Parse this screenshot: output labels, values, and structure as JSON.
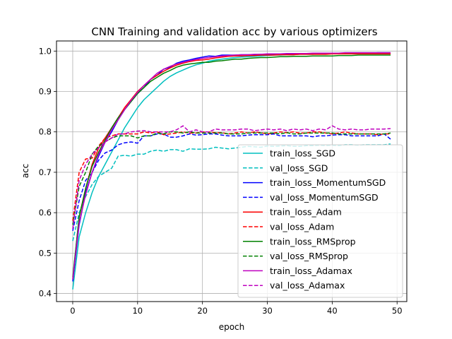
{
  "chart_data": {
    "type": "line",
    "title": "CNN Training and validation acc by various optimizers",
    "xlabel": "epoch",
    "ylabel": "acc",
    "xlim": [
      -2.5,
      51.5
    ],
    "ylim": [
      0.38,
      1.025
    ],
    "x_ticks": [
      "0",
      "10",
      "20",
      "30",
      "40",
      "50"
    ],
    "x_tick_values": [
      0,
      10,
      20,
      30,
      40,
      50
    ],
    "y_ticks": [
      "0.4",
      "0.5",
      "0.6",
      "0.7",
      "0.8",
      "0.9",
      "1.0"
    ],
    "y_tick_values": [
      0.4,
      0.5,
      0.6,
      0.7,
      0.8,
      0.9,
      1.0
    ],
    "grid": true,
    "legend_position": "lower-right",
    "x": [
      0,
      1,
      2,
      3,
      4,
      5,
      6,
      7,
      8,
      9,
      10,
      11,
      12,
      13,
      14,
      15,
      16,
      17,
      18,
      19,
      20,
      21,
      22,
      23,
      24,
      25,
      26,
      27,
      28,
      29,
      30,
      31,
      32,
      33,
      34,
      35,
      36,
      37,
      38,
      39,
      40,
      41,
      42,
      43,
      44,
      45,
      46,
      47,
      48,
      49
    ],
    "series": [
      {
        "name": "train_loss_SGD",
        "color": "#00bfbf",
        "dash": "solid",
        "values": [
          0.41,
          0.54,
          0.6,
          0.65,
          0.69,
          0.72,
          0.75,
          0.78,
          0.81,
          0.835,
          0.86,
          0.88,
          0.895,
          0.91,
          0.925,
          0.937,
          0.946,
          0.953,
          0.96,
          0.966,
          0.97,
          0.975,
          0.978,
          0.98,
          0.982,
          0.984,
          0.985,
          0.986,
          0.987,
          0.988,
          0.989,
          0.99,
          0.99,
          0.991,
          0.991,
          0.992,
          0.992,
          0.992,
          0.993,
          0.993,
          0.993,
          0.993,
          0.994,
          0.994,
          0.994,
          0.994,
          0.994,
          0.994,
          0.995,
          0.995
        ]
      },
      {
        "name": "val_loss_SGD",
        "color": "#00bfbf",
        "dash": "dashed",
        "values": [
          0.53,
          0.6,
          0.64,
          0.67,
          0.69,
          0.7,
          0.71,
          0.74,
          0.742,
          0.74,
          0.745,
          0.745,
          0.752,
          0.755,
          0.752,
          0.756,
          0.756,
          0.752,
          0.758,
          0.757,
          0.757,
          0.758,
          0.762,
          0.76,
          0.758,
          0.76,
          0.762,
          0.764,
          0.763,
          0.762,
          0.765,
          0.764,
          0.765,
          0.766,
          0.764,
          0.764,
          0.766,
          0.766,
          0.767,
          0.766,
          0.767,
          0.766,
          0.768,
          0.768,
          0.767,
          0.768,
          0.768,
          0.768,
          0.768,
          0.77
        ]
      },
      {
        "name": "train_loss_MomentumSGD",
        "color": "#0000ff",
        "dash": "solid",
        "values": [
          0.43,
          0.57,
          0.65,
          0.7,
          0.74,
          0.775,
          0.8,
          0.83,
          0.855,
          0.875,
          0.895,
          0.91,
          0.93,
          0.94,
          0.955,
          0.96,
          0.97,
          0.975,
          0.978,
          0.982,
          0.985,
          0.988,
          0.987,
          0.99,
          0.99,
          0.99,
          0.991,
          0.991,
          0.991,
          0.992,
          0.992,
          0.992,
          0.993,
          0.993,
          0.993,
          0.993,
          0.993,
          0.994,
          0.994,
          0.994,
          0.995,
          0.995,
          0.995,
          0.995,
          0.995,
          0.995,
          0.995,
          0.996,
          0.996,
          0.996
        ]
      },
      {
        "name": "val_loss_MomentumSGD",
        "color": "#0000ff",
        "dash": "dashed",
        "values": [
          0.555,
          0.63,
          0.68,
          0.7,
          0.73,
          0.748,
          0.755,
          0.768,
          0.773,
          0.775,
          0.772,
          0.79,
          0.79,
          0.795,
          0.795,
          0.787,
          0.787,
          0.79,
          0.795,
          0.792,
          0.793,
          0.795,
          0.795,
          0.792,
          0.79,
          0.79,
          0.79,
          0.792,
          0.793,
          0.793,
          0.793,
          0.795,
          0.79,
          0.79,
          0.79,
          0.79,
          0.79,
          0.788,
          0.79,
          0.79,
          0.792,
          0.793,
          0.793,
          0.79,
          0.79,
          0.79,
          0.79,
          0.79,
          0.795,
          0.782
        ]
      },
      {
        "name": "train_loss_Adam",
        "color": "#ff0000",
        "dash": "solid",
        "values": [
          0.435,
          0.59,
          0.66,
          0.72,
          0.76,
          0.785,
          0.81,
          0.835,
          0.86,
          0.88,
          0.9,
          0.915,
          0.93,
          0.94,
          0.95,
          0.958,
          0.965,
          0.97,
          0.974,
          0.977,
          0.978,
          0.98,
          0.983,
          0.985,
          0.987,
          0.988,
          0.988,
          0.989,
          0.989,
          0.99,
          0.99,
          0.99,
          0.991,
          0.991,
          0.991,
          0.992,
          0.992,
          0.992,
          0.992,
          0.992,
          0.993,
          0.993,
          0.993,
          0.993,
          0.993,
          0.993,
          0.993,
          0.993,
          0.993,
          0.993
        ]
      },
      {
        "name": "val_loss_Adam",
        "color": "#ff0000",
        "dash": "dashed",
        "values": [
          0.58,
          0.7,
          0.733,
          0.735,
          0.765,
          0.785,
          0.79,
          0.795,
          0.795,
          0.795,
          0.795,
          0.8,
          0.797,
          0.8,
          0.793,
          0.795,
          0.797,
          0.8,
          0.797,
          0.797,
          0.8,
          0.8,
          0.798,
          0.798,
          0.795,
          0.797,
          0.8,
          0.797,
          0.8,
          0.798,
          0.795,
          0.797,
          0.8,
          0.798,
          0.8,
          0.797,
          0.797,
          0.8,
          0.8,
          0.797,
          0.795,
          0.797,
          0.8,
          0.797,
          0.795,
          0.795,
          0.795,
          0.793,
          0.795,
          0.795
        ]
      },
      {
        "name": "train_loss_RMSprop",
        "color": "#008000",
        "dash": "solid",
        "values": [
          0.44,
          0.59,
          0.66,
          0.715,
          0.75,
          0.78,
          0.81,
          0.835,
          0.855,
          0.875,
          0.895,
          0.91,
          0.925,
          0.935,
          0.945,
          0.952,
          0.96,
          0.965,
          0.968,
          0.97,
          0.972,
          0.972,
          0.975,
          0.976,
          0.978,
          0.98,
          0.98,
          0.982,
          0.983,
          0.984,
          0.984,
          0.985,
          0.986,
          0.986,
          0.987,
          0.987,
          0.987,
          0.988,
          0.988,
          0.988,
          0.988,
          0.989,
          0.989,
          0.989,
          0.99,
          0.99,
          0.99,
          0.99,
          0.99,
          0.99
        ]
      },
      {
        "name": "val_loss_RMSprop",
        "color": "#008000",
        "dash": "dashed",
        "values": [
          0.57,
          0.665,
          0.7,
          0.745,
          0.765,
          0.775,
          0.785,
          0.79,
          0.79,
          0.79,
          0.785,
          0.79,
          0.79,
          0.797,
          0.795,
          0.8,
          0.8,
          0.797,
          0.8,
          0.797,
          0.797,
          0.797,
          0.797,
          0.797,
          0.795,
          0.795,
          0.795,
          0.797,
          0.797,
          0.797,
          0.797,
          0.797,
          0.795,
          0.798,
          0.795,
          0.795,
          0.797,
          0.797,
          0.797,
          0.797,
          0.797,
          0.795,
          0.795,
          0.795,
          0.795,
          0.795,
          0.795,
          0.795,
          0.795,
          0.797
        ]
      },
      {
        "name": "train_loss_Adamax",
        "color": "#bf00bf",
        "dash": "solid",
        "values": [
          0.435,
          0.575,
          0.645,
          0.7,
          0.745,
          0.775,
          0.805,
          0.83,
          0.855,
          0.878,
          0.898,
          0.915,
          0.93,
          0.945,
          0.955,
          0.962,
          0.968,
          0.972,
          0.976,
          0.979,
          0.982,
          0.984,
          0.986,
          0.988,
          0.989,
          0.99,
          0.991,
          0.991,
          0.992,
          0.992,
          0.993,
          0.993,
          0.993,
          0.994,
          0.994,
          0.994,
          0.994,
          0.995,
          0.995,
          0.995,
          0.995,
          0.995,
          0.996,
          0.996,
          0.996,
          0.996,
          0.996,
          0.996,
          0.996,
          0.996
        ]
      },
      {
        "name": "val_loss_Adamax",
        "color": "#bf00bf",
        "dash": "dashed",
        "values": [
          0.56,
          0.68,
          0.72,
          0.745,
          0.76,
          0.775,
          0.785,
          0.795,
          0.795,
          0.8,
          0.802,
          0.803,
          0.8,
          0.8,
          0.8,
          0.8,
          0.805,
          0.815,
          0.8,
          0.805,
          0.8,
          0.8,
          0.807,
          0.805,
          0.805,
          0.805,
          0.807,
          0.807,
          0.803,
          0.805,
          0.807,
          0.805,
          0.807,
          0.803,
          0.807,
          0.805,
          0.807,
          0.803,
          0.807,
          0.805,
          0.815,
          0.807,
          0.805,
          0.807,
          0.805,
          0.805,
          0.807,
          0.807,
          0.807,
          0.808
        ]
      }
    ]
  }
}
